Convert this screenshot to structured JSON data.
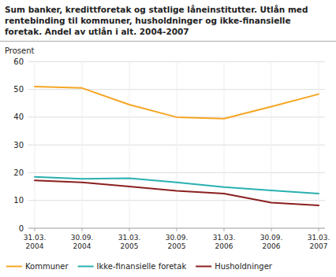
{
  "chart_data": {
    "type": "line",
    "title": "Sum banker, kredittforetak og statlige låneinstitutter. Utlån med\nrentebinding til kommuner, husholdninger og ikke-finansielle\nforetak. Andel av utlån i alt. 2004-2007",
    "y_label": "Prosent",
    "categories": [
      "31.03.\n2004",
      "30.09.\n2004",
      "31.03.\n2005",
      "30.09.\n2005",
      "31.03.\n2006",
      "30.09.\n2006",
      "31.03.\n2007"
    ],
    "series": [
      {
        "name": "Kommuner",
        "color": "#f5a623",
        "values": [
          51.0,
          50.5,
          44.5,
          40.0,
          39.5,
          43.8,
          48.3
        ]
      },
      {
        "name": "Ikke-finansielle foretak",
        "color": "#2ab0b0",
        "values": [
          18.5,
          17.8,
          18.0,
          16.5,
          14.8,
          13.6,
          12.5
        ]
      },
      {
        "name": "Husholdninger",
        "color": "#8b2020",
        "values": [
          17.2,
          16.5,
          15.0,
          13.5,
          12.5,
          9.2,
          8.2
        ]
      }
    ],
    "ylim": [
      0,
      60
    ],
    "yticks": [
      0,
      10,
      20,
      30,
      40,
      50,
      60
    ],
    "grid": true,
    "legend": "bottom"
  }
}
